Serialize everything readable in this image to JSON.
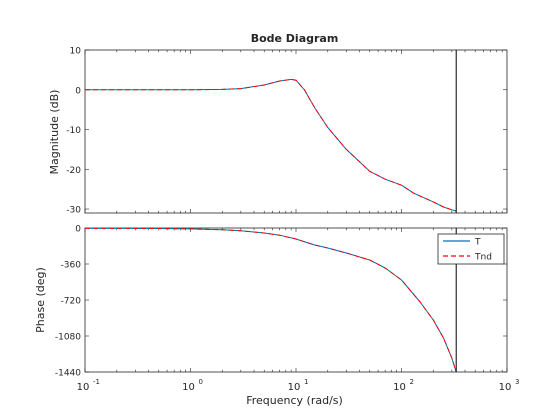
{
  "chart_data": {
    "type": "line",
    "title": "Bode Diagram",
    "xlabel": "Frequency  (rad/s)",
    "x_scale": "log",
    "xlim": [
      0.1,
      1000
    ],
    "x_tick_labels": [
      {
        "base": "10",
        "exp": "-1"
      },
      {
        "base": "10",
        "exp": "0"
      },
      {
        "base": "10",
        "exp": "1"
      },
      {
        "base": "10",
        "exp": "2"
      },
      {
        "base": "10",
        "exp": "3"
      }
    ],
    "vertical_marker_x": 330,
    "legend": {
      "placement": "top-right",
      "entries": [
        "T",
        "Tnd"
      ]
    },
    "series_colors": {
      "T": "#0072bd",
      "Tnd": "#ff0000"
    },
    "panels": [
      {
        "ylabel": "Magnitude (dB)",
        "ylim": [
          -31,
          10
        ],
        "yticks": [
          10,
          0,
          -10,
          -20,
          -30
        ],
        "series": [
          {
            "name": "T",
            "x": [
              0.1,
              0.3,
              1,
              2,
              3,
              5,
              7,
              9,
              10,
              12,
              15,
              20,
              30,
              50,
              70,
              100,
              130,
              200,
              250,
              300,
              330
            ],
            "y": [
              0,
              0,
              0,
              0.1,
              0.3,
              1.2,
              2.2,
              2.6,
              2.4,
              0,
              -4.5,
              -9.5,
              -15,
              -20.5,
              -22.5,
              -24,
              -26,
              -28.2,
              -29.5,
              -30.2,
              -30.5
            ]
          },
          {
            "name": "Tnd",
            "x": [
              0.1,
              0.3,
              1,
              2,
              3,
              5,
              7,
              9,
              10,
              12,
              15,
              20,
              30,
              50,
              70,
              100,
              130,
              200,
              250,
              300,
              330
            ],
            "y": [
              0,
              0,
              0,
              0.1,
              0.3,
              1.2,
              2.2,
              2.6,
              2.4,
              0,
              -4.5,
              -9.5,
              -15,
              -20.5,
              -22.5,
              -24,
              -26,
              -28.2,
              -29.5,
              -30.2,
              -30.5
            ]
          }
        ]
      },
      {
        "ylabel": "Phase (deg)",
        "ylim": [
          -1440,
          0
        ],
        "yticks": [
          0,
          -360,
          -720,
          -1080,
          -1440
        ],
        "series": [
          {
            "name": "T",
            "x": [
              0.1,
              0.5,
              1,
              2,
              3,
              5,
              7,
              10,
              15,
              20,
              30,
              50,
              70,
              100,
              150,
              200,
              250,
              300,
              330
            ],
            "y": [
              -3,
              -5,
              -9,
              -18,
              -28,
              -50,
              -72,
              -110,
              -170,
              -200,
              -250,
              -320,
              -400,
              -520,
              -740,
              -920,
              -1100,
              -1300,
              -1440
            ]
          },
          {
            "name": "Tnd",
            "x": [
              0.1,
              0.5,
              1,
              2,
              3,
              5,
              7,
              10,
              15,
              20,
              30,
              50,
              70,
              100,
              150,
              200,
              250,
              300,
              330
            ],
            "y": [
              -3,
              -5,
              -9,
              -18,
              -28,
              -50,
              -72,
              -110,
              -170,
              -200,
              -250,
              -320,
              -400,
              -520,
              -740,
              -920,
              -1100,
              -1300,
              -1440
            ]
          }
        ]
      }
    ]
  }
}
